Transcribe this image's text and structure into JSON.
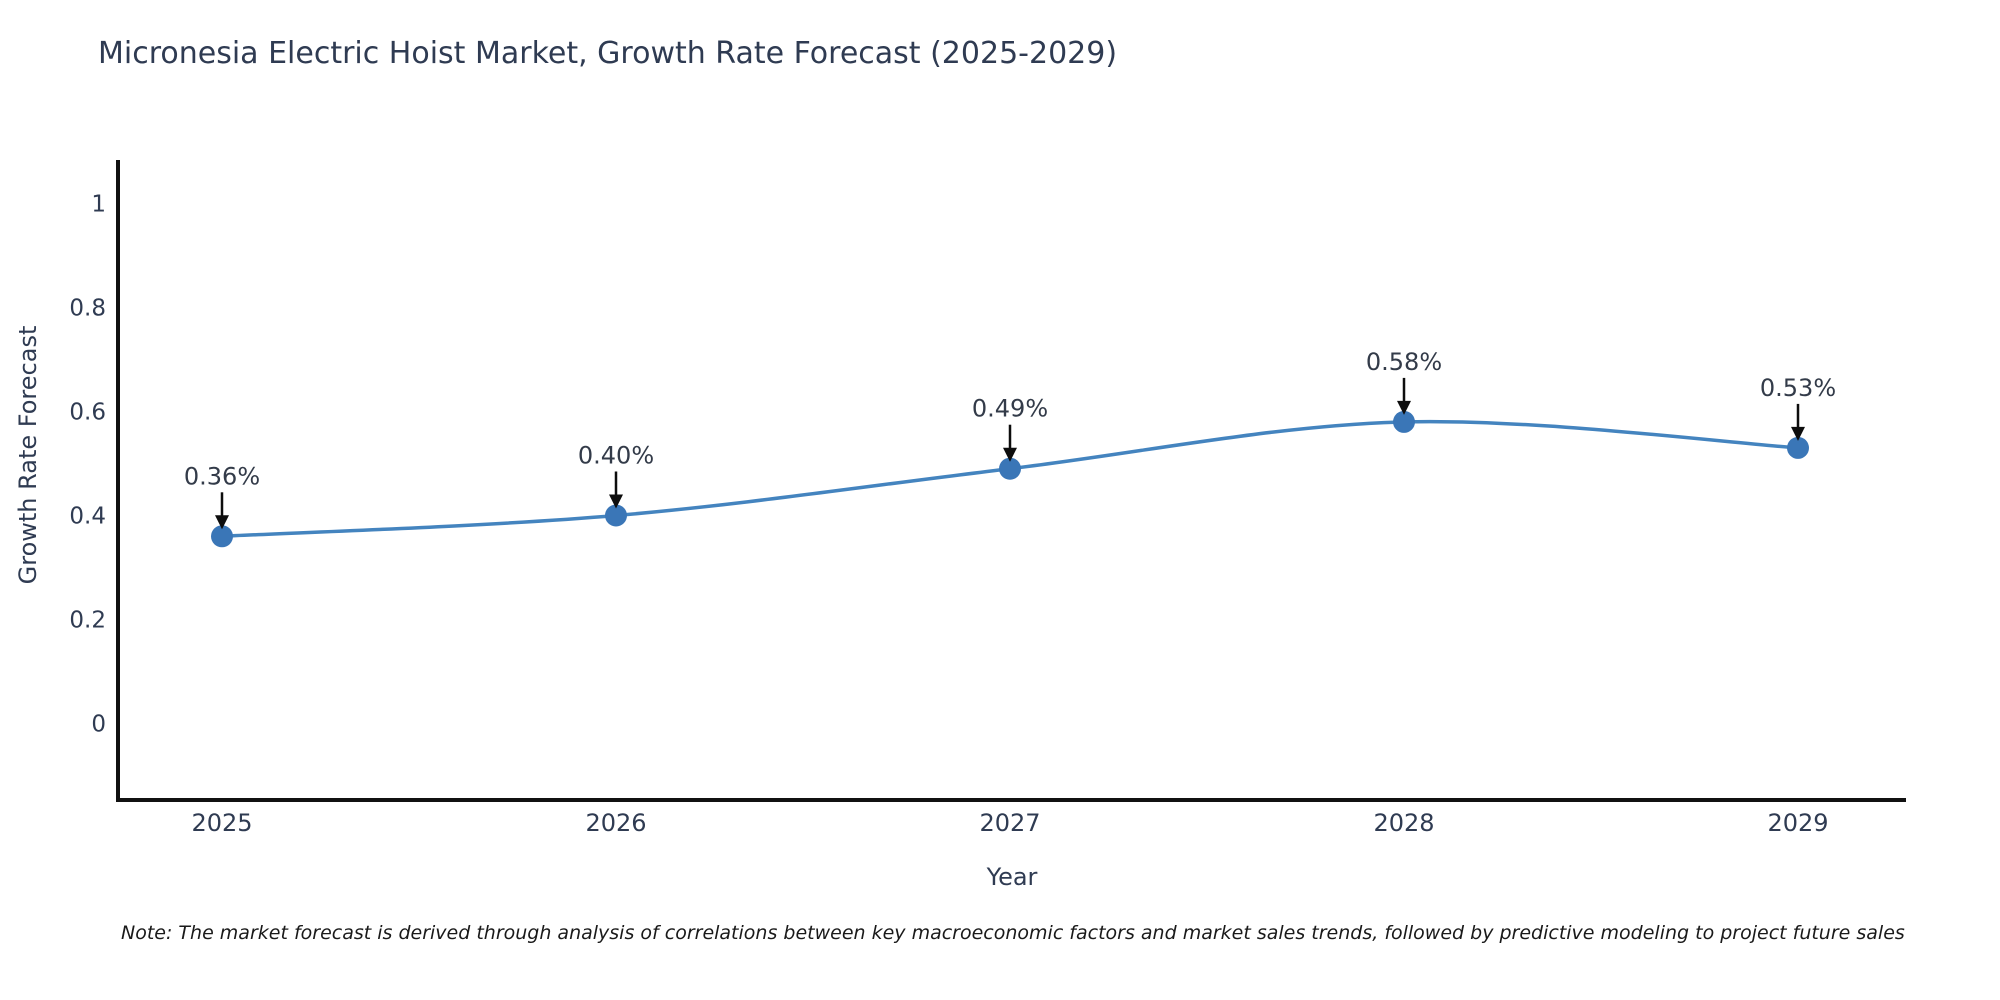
{
  "title": "Micronesia Electric Hoist Market, Growth Rate Forecast (2025-2029)",
  "note": "Note: The market forecast is derived through analysis of correlations between key macroeconomic factors and market sales trends, followed by predictive modeling to project future sales",
  "chart_data": {
    "type": "line",
    "x": [
      "2025",
      "2026",
      "2027",
      "2028",
      "2029"
    ],
    "values": [
      0.36,
      0.4,
      0.49,
      0.58,
      0.53
    ],
    "point_labels": [
      "0.36%",
      "0.40%",
      "0.49%",
      "0.58%",
      "0.53%"
    ],
    "xlabel": "Year",
    "ylabel": "Growth Rate Forecast",
    "ytick_labels": [
      "0",
      "0.2",
      "0.4",
      "0.6",
      "0.8",
      "1"
    ],
    "ytick_values": [
      0,
      0.2,
      0.4,
      0.6,
      0.8,
      1
    ],
    "ylim": [
      -0.15,
      1.08
    ],
    "grid": false,
    "legend": "none",
    "colors": {
      "line": "#4484bf",
      "marker": "#3a76b7",
      "axis": "#111111",
      "tick_text": "#2f3b52",
      "label_text": "#333b49",
      "arrow": "#0d0d0d"
    }
  }
}
